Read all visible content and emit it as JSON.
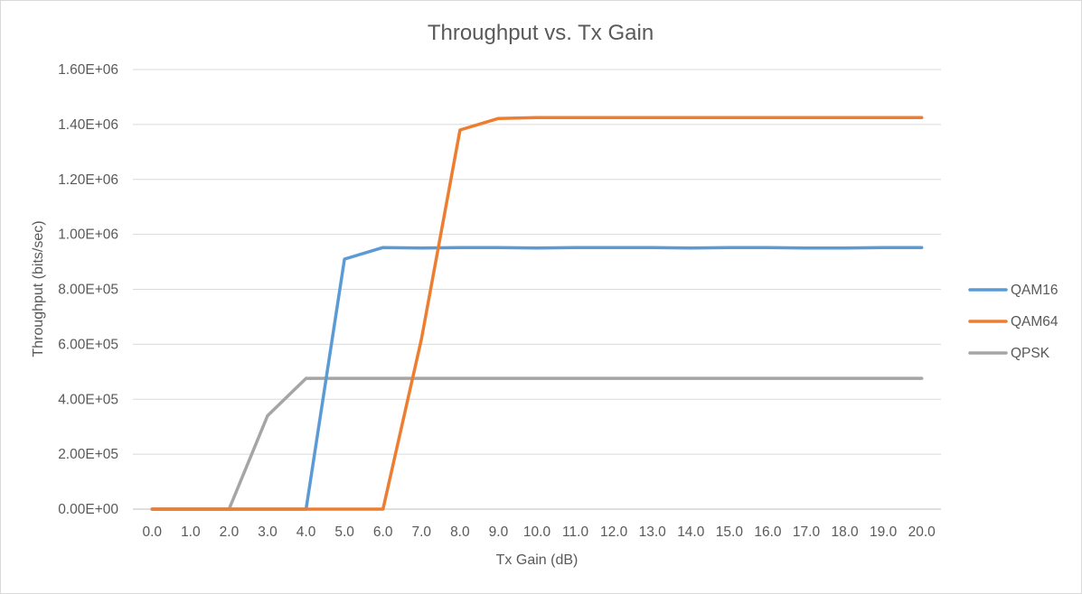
{
  "chart_data": {
    "type": "line",
    "title": "Throughput vs. Tx Gain",
    "xlabel": "Tx Gain (dB)",
    "ylabel": "Throughput (bits/sec)",
    "categories": [
      "0.0",
      "1.0",
      "2.0",
      "3.0",
      "4.0",
      "5.0",
      "6.0",
      "7.0",
      "8.0",
      "9.0",
      "10.0",
      "11.0",
      "12.0",
      "13.0",
      "14.0",
      "15.0",
      "16.0",
      "17.0",
      "18.0",
      "19.0",
      "20.0"
    ],
    "ylim": [
      0,
      1600000
    ],
    "yticks": [
      "0.00E+00",
      "2.00E+05",
      "4.00E+05",
      "6.00E+05",
      "8.00E+05",
      "1.00E+06",
      "1.20E+06",
      "1.40E+06",
      "1.60E+06"
    ],
    "grid": true,
    "legend_position": "right",
    "series": [
      {
        "name": "QAM16",
        "color": "#5b9bd5",
        "values": [
          0,
          0,
          0,
          0,
          0,
          910000,
          952000,
          950000,
          952000,
          952000,
          950000,
          952000,
          952000,
          952000,
          950000,
          952000,
          952000,
          950000,
          950000,
          952000,
          952000
        ]
      },
      {
        "name": "QAM64",
        "color": "#ed7d31",
        "values": [
          0,
          0,
          0,
          0,
          0,
          0,
          0,
          620000,
          1380000,
          1422000,
          1425000,
          1425000,
          1425000,
          1425000,
          1425000,
          1425000,
          1425000,
          1425000,
          1425000,
          1425000,
          1425000
        ]
      },
      {
        "name": "QPSK",
        "color": "#a5a5a5",
        "values": [
          0,
          0,
          0,
          340000,
          476000,
          476000,
          476000,
          476000,
          476000,
          476000,
          476000,
          476000,
          476000,
          476000,
          476000,
          476000,
          476000,
          476000,
          476000,
          476000,
          476000
        ]
      }
    ]
  }
}
